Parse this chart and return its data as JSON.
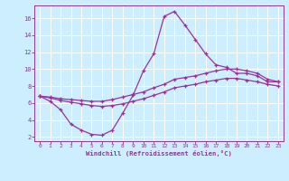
{
  "xlabel": "Windchill (Refroidissement éolien,°C)",
  "background_color": "#cceeff",
  "line_color": "#993399",
  "grid_color": "#ffffff",
  "xlim": [
    -0.5,
    23.5
  ],
  "ylim": [
    1.5,
    17.5
  ],
  "yticks": [
    2,
    4,
    6,
    8,
    10,
    12,
    14,
    16
  ],
  "xticks": [
    0,
    1,
    2,
    3,
    4,
    5,
    6,
    7,
    8,
    9,
    10,
    11,
    12,
    13,
    14,
    15,
    16,
    17,
    18,
    19,
    20,
    21,
    22,
    23
  ],
  "series": [
    {
      "x": [
        0,
        1,
        2,
        3,
        4,
        5,
        6,
        7,
        8,
        9,
        10,
        11,
        12,
        13,
        14,
        15,
        16,
        17,
        18,
        19,
        20,
        21,
        22,
        23
      ],
      "y": [
        6.8,
        6.2,
        5.2,
        3.5,
        2.8,
        2.3,
        2.2,
        2.8,
        4.8,
        6.9,
        9.8,
        11.8,
        16.2,
        16.8,
        15.2,
        13.5,
        11.8,
        10.5,
        10.2,
        9.5,
        9.5,
        9.2,
        8.5,
        8.5
      ]
    },
    {
      "x": [
        0,
        1,
        2,
        3,
        4,
        5,
        6,
        7,
        8,
        9,
        10,
        11,
        12,
        13,
        14,
        15,
        16,
        17,
        18,
        19,
        20,
        21,
        22,
        23
      ],
      "y": [
        6.8,
        6.7,
        6.5,
        6.4,
        6.3,
        6.2,
        6.2,
        6.4,
        6.7,
        7.0,
        7.3,
        7.8,
        8.2,
        8.8,
        9.0,
        9.2,
        9.5,
        9.8,
        10.0,
        10.0,
        9.8,
        9.5,
        8.8,
        8.5
      ]
    },
    {
      "x": [
        0,
        1,
        2,
        3,
        4,
        5,
        6,
        7,
        8,
        9,
        10,
        11,
        12,
        13,
        14,
        15,
        16,
        17,
        18,
        19,
        20,
        21,
        22,
        23
      ],
      "y": [
        6.8,
        6.6,
        6.3,
        6.1,
        5.9,
        5.7,
        5.6,
        5.7,
        5.9,
        6.2,
        6.5,
        6.9,
        7.3,
        7.8,
        8.0,
        8.2,
        8.5,
        8.7,
        8.9,
        8.9,
        8.7,
        8.5,
        8.2,
        8.0
      ]
    }
  ]
}
